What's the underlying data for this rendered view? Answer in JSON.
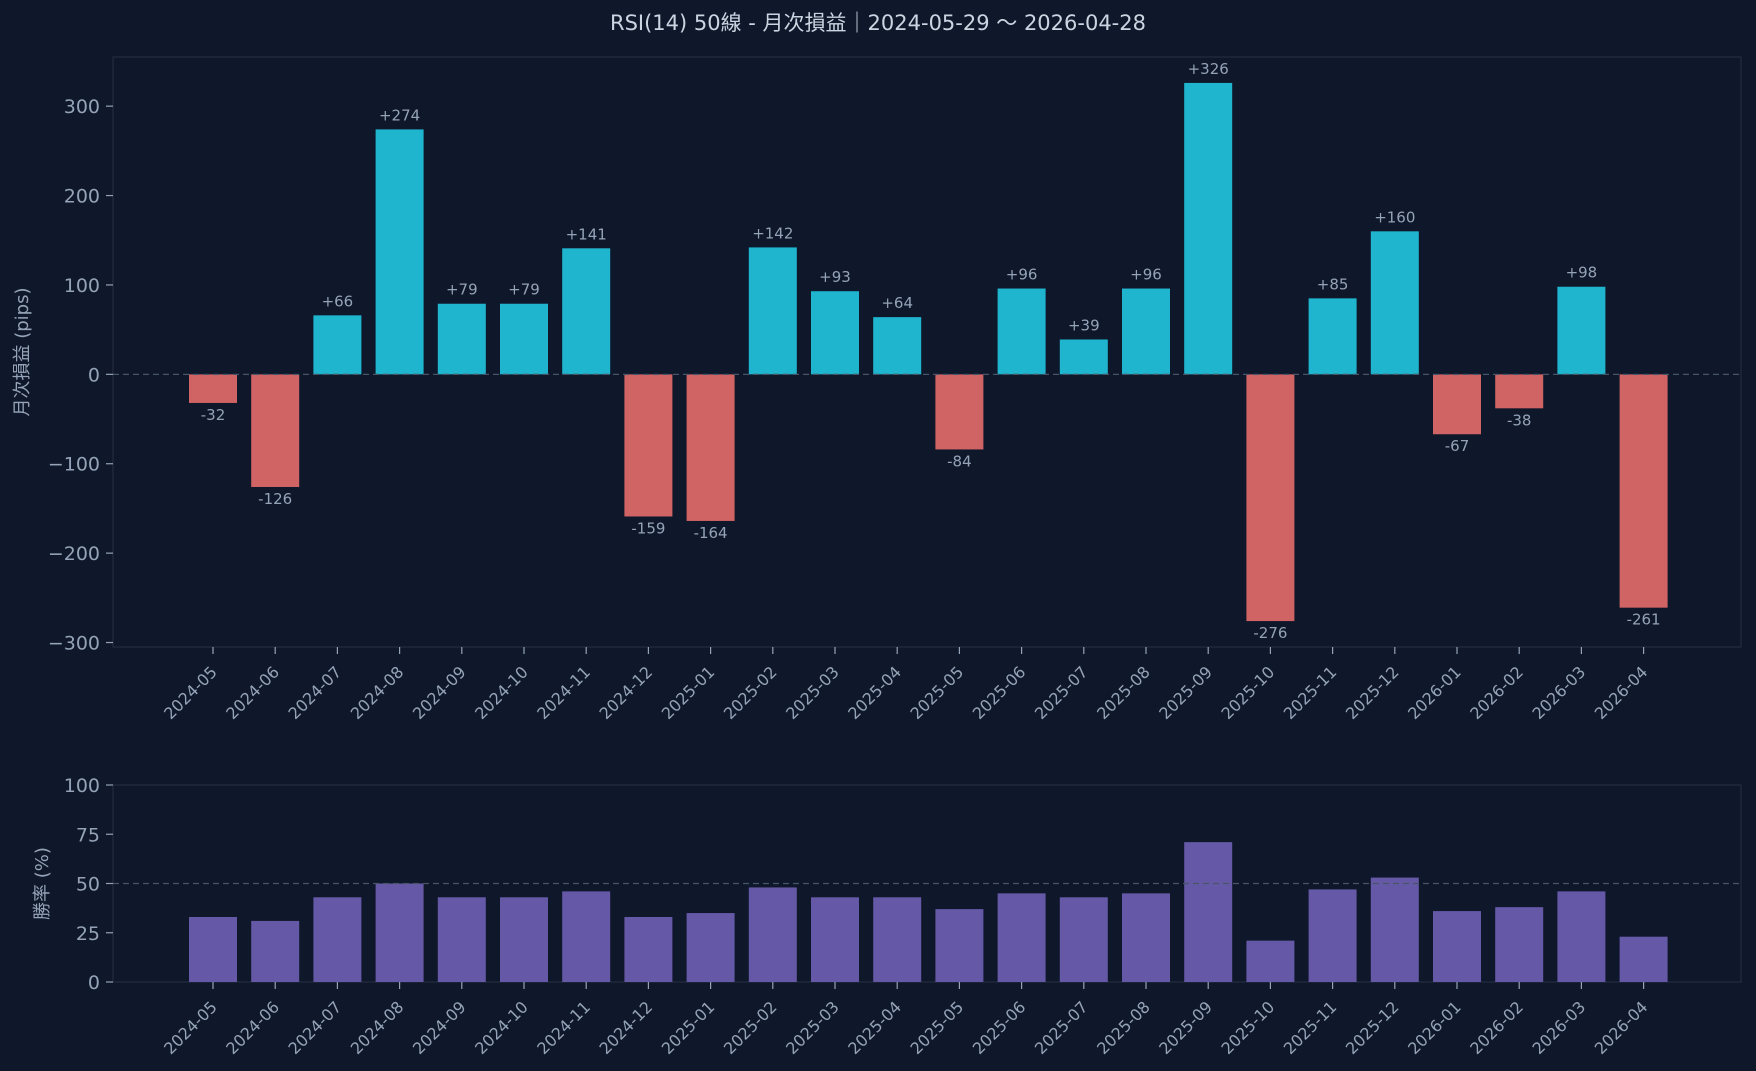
{
  "colors": {
    "background": "#0f172a",
    "frame": "#1e293b",
    "text": "#cbd5e1",
    "tick_text": "#94a3b8",
    "positive": "#1fb5cf",
    "negative": "#d06364",
    "winrate": "#6558a6",
    "zero_line": "#475569"
  },
  "chart_data": [
    {
      "type": "bar",
      "title": "RSI(14) 50線 - 月次損益｜2024-05-29 〜 2026-04-28",
      "xlabel": "",
      "ylabel": "月次損益 (pips)",
      "ylim": [
        -305,
        355
      ],
      "yticks": [
        300,
        200,
        100,
        0,
        -100,
        -200,
        -300
      ],
      "ytick_labels": [
        "300",
        "200",
        "100",
        "0",
        "−100",
        "−200",
        "−300"
      ],
      "reference_line": 0,
      "categories": [
        "2024-05",
        "2024-06",
        "2024-07",
        "2024-08",
        "2024-09",
        "2024-10",
        "2024-11",
        "2024-12",
        "2025-01",
        "2025-02",
        "2025-03",
        "2025-04",
        "2025-05",
        "2025-06",
        "2025-07",
        "2025-08",
        "2025-09",
        "2025-10",
        "2025-11",
        "2025-12",
        "2026-01",
        "2026-02",
        "2026-03",
        "2026-04"
      ],
      "values": [
        -32,
        -126,
        66,
        274,
        79,
        79,
        141,
        -159,
        -164,
        142,
        93,
        64,
        -84,
        96,
        39,
        96,
        326,
        -276,
        85,
        160,
        -67,
        -38,
        98,
        -261
      ],
      "data_labels": [
        "-32",
        "-126",
        "+66",
        "+274",
        "+79",
        "+79",
        "+141",
        "-159",
        "-164",
        "+142",
        "+93",
        "+64",
        "-84",
        "+96",
        "+39",
        "+96",
        "+326",
        "-276",
        "+85",
        "+160",
        "-67",
        "-38",
        "+98",
        "-261"
      ]
    },
    {
      "type": "bar",
      "title": "",
      "xlabel": "",
      "ylabel": "勝率 (%)",
      "ylim": [
        0,
        100
      ],
      "yticks": [
        100,
        75,
        50,
        25,
        0
      ],
      "ytick_labels": [
        "100",
        "75",
        "50",
        "25",
        "0"
      ],
      "reference_line": 50,
      "categories": [
        "2024-05",
        "2024-06",
        "2024-07",
        "2024-08",
        "2024-09",
        "2024-10",
        "2024-11",
        "2024-12",
        "2025-01",
        "2025-02",
        "2025-03",
        "2025-04",
        "2025-05",
        "2025-06",
        "2025-07",
        "2025-08",
        "2025-09",
        "2025-10",
        "2025-11",
        "2025-12",
        "2026-01",
        "2026-02",
        "2026-03",
        "2026-04"
      ],
      "values": [
        33,
        31,
        43,
        50,
        43,
        43,
        46,
        33,
        35,
        48,
        43,
        43,
        37,
        45,
        43,
        45,
        71,
        21,
        47,
        53,
        36,
        38,
        46,
        23
      ]
    }
  ]
}
